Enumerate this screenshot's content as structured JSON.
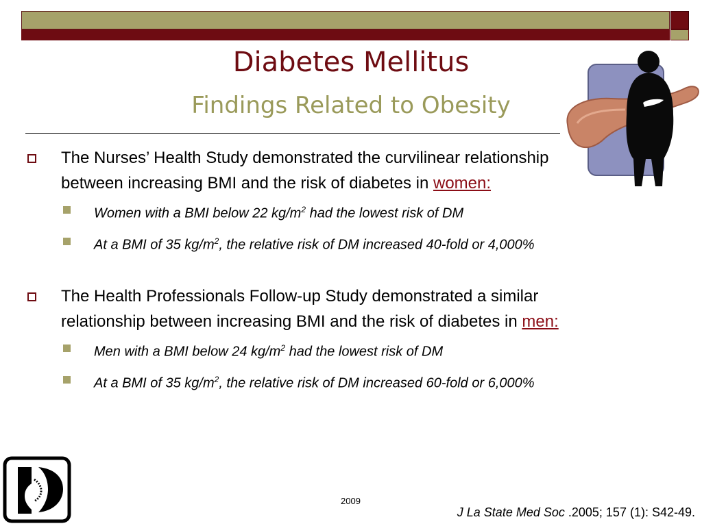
{
  "slide": {
    "title": "Diabetes Mellitus",
    "subtitle": "Findings Related to Obesity",
    "year": "2009"
  },
  "bullets": [
    {
      "text": "The Nurses’ Health Study demonstrated the curvilinear relationship between increasing BMI and the risk of diabetes in ",
      "link": "women:",
      "subs": [
        {
          "pre": "Women with a BMI below 22 kg/m",
          "sup": "2",
          "post": " had the lowest risk of DM"
        },
        {
          "pre": "At a BMI of 35 kg/m",
          "sup": "2",
          "post": ", the relative risk of DM increased 40-fold or 4,000%"
        }
      ]
    },
    {
      "text": "The Health Professionals Follow-up Study demonstrated a similar relationship between increasing BMI and the risk of diabetes in ",
      "link": "men:",
      "subs": [
        {
          "pre": "Men with a BMI below 24 kg/m",
          "sup": "2",
          "post": " had  the lowest risk of DM"
        },
        {
          "pre": "At a BMI of 35 kg/m",
          "sup": "2",
          "post": ", the relative risk of DM increased 60-fold or 6,000%"
        }
      ]
    }
  ],
  "citation": {
    "journal": "J  La State Med Soc",
    "details": " .2005; 157 (1): S42-49."
  },
  "colors": {
    "accent_red": "#6e0c12",
    "olive": "#a6a26a",
    "subtitle": "#9a9a5a"
  },
  "icons": {
    "logo": "organization-logo-icon",
    "figure": "obese-silhouette-pancreas-icon"
  }
}
